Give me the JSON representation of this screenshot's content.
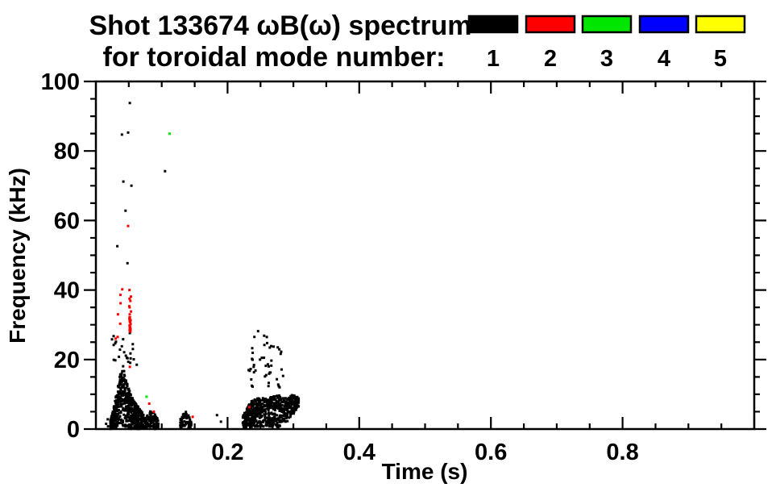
{
  "title": {
    "line1": "Shot 133674 ωB(ω) spectrum",
    "line2": "for toroidal mode number:"
  },
  "legend": {
    "items": [
      {
        "label": "1",
        "color": "#000000"
      },
      {
        "label": "2",
        "color": "#ff0000"
      },
      {
        "label": "3",
        "color": "#00e600"
      },
      {
        "label": "4",
        "color": "#0000ff"
      },
      {
        "label": "5",
        "color": "#ffff00"
      }
    ]
  },
  "chart_data": {
    "type": "scatter",
    "title": "Shot 133674 ωB(ω) spectrum for toroidal mode number: 1 2 3 4 5",
    "xlabel": "Time (s)",
    "ylabel": "Frequency (kHz)",
    "xlim": [
      0,
      1.0
    ],
    "ylim": [
      0,
      100
    ],
    "x_major_ticks": [
      0.2,
      0.4,
      0.6,
      0.8,
      1.0
    ],
    "x_tick_labels": [
      "0.2",
      "0.4",
      "0.6",
      "0.8",
      ""
    ],
    "x_minor_step": 0.05,
    "y_major_ticks": [
      0,
      20,
      40,
      60,
      80,
      100
    ],
    "y_tick_labels": [
      "0",
      "20",
      "40",
      "60",
      "80",
      "100"
    ],
    "y_minor_step": 5,
    "grid": false,
    "legend_position": "top-right",
    "series": [
      {
        "mode": 1,
        "color": "#000000",
        "points": [
          [
            0.0155,
            1.5
          ],
          [
            0.018,
            2.8
          ],
          [
            0.0185,
            0.8
          ],
          [
            0.0245,
            25.8
          ],
          [
            0.027,
            24.2
          ],
          [
            0.0295,
            19.8
          ],
          [
            0.0325,
            52.6
          ],
          [
            0.0395,
            84.7
          ],
          [
            0.049,
            85.3
          ],
          [
            0.0515,
            93.8
          ],
          [
            0.0417,
            71.2
          ],
          [
            0.054,
            70.0
          ],
          [
            0.045,
            62.8
          ],
          [
            0.048,
            47.7
          ],
          [
            0.043,
            22.1
          ],
          [
            0.047,
            20.5
          ],
          [
            0.0515,
            27.6
          ],
          [
            0.056,
            24.4
          ],
          [
            0.062,
            18.5
          ],
          [
            0.105,
            74.2
          ],
          [
            0.184,
            4.0
          ],
          [
            0.19,
            2.1
          ]
        ],
        "dense_regions": [
          {
            "name": "burst-1-core",
            "seed": 7,
            "n": 600,
            "envelope": [
              [
                0.022,
                0,
                2.5
              ],
              [
                0.028,
                0,
                7
              ],
              [
                0.033,
                0.5,
                12
              ],
              [
                0.037,
                1,
                16
              ],
              [
                0.041,
                1,
                18.5
              ],
              [
                0.045,
                0.5,
                15
              ],
              [
                0.049,
                0,
                12.5
              ],
              [
                0.053,
                0,
                10
              ],
              [
                0.058,
                0,
                8
              ],
              [
                0.063,
                0,
                7
              ],
              [
                0.068,
                0,
                5.5
              ],
              [
                0.073,
                0,
                4
              ]
            ]
          },
          {
            "name": "burst-1-tail",
            "seed": 11,
            "n": 110,
            "envelope": [
              [
                0.075,
                0,
                3
              ],
              [
                0.079,
                0.5,
                5
              ],
              [
                0.084,
                0.5,
                5.5
              ],
              [
                0.089,
                0,
                4.5
              ],
              [
                0.095,
                0,
                2.5
              ]
            ]
          },
          {
            "name": "burst-2",
            "seed": 13,
            "n": 80,
            "envelope": [
              [
                0.128,
                0.5,
                3
              ],
              [
                0.132,
                0.5,
                4.5
              ],
              [
                0.137,
                0.5,
                5
              ],
              [
                0.141,
                0,
                4
              ],
              [
                0.145,
                0,
                2
              ]
            ]
          },
          {
            "name": "burst-3-core",
            "seed": 17,
            "n": 620,
            "envelope": [
              [
                0.223,
                0,
                4
              ],
              [
                0.23,
                0.5,
                6.5
              ],
              [
                0.238,
                0.5,
                8.5
              ],
              [
                0.246,
                0.5,
                9
              ],
              [
                0.254,
                0.5,
                9.5
              ],
              [
                0.262,
                0.5,
                8.5
              ],
              [
                0.27,
                0.5,
                10
              ],
              [
                0.278,
                0.5,
                10
              ],
              [
                0.286,
                1.5,
                9.5
              ],
              [
                0.293,
                2.5,
                9
              ],
              [
                0.299,
                4,
                10
              ],
              [
                0.304,
                5.5,
                9.5
              ],
              [
                0.308,
                6.5,
                9
              ]
            ]
          },
          {
            "name": "burst-3-halo",
            "seed": 19,
            "n": 48,
            "envelope": [
              [
                0.232,
                12,
                28
              ],
              [
                0.25,
                12,
                29
              ],
              [
                0.27,
                12,
                26
              ],
              [
                0.285,
                12,
                22
              ]
            ]
          },
          {
            "name": "burst-1-halo",
            "seed": 23,
            "n": 16,
            "envelope": [
              [
                0.024,
                19.5,
                27
              ],
              [
                0.045,
                19,
                26
              ],
              [
                0.058,
                19,
                24
              ]
            ]
          }
        ]
      },
      {
        "mode": 2,
        "color": "#ff0000",
        "points": [
          [
            0.03,
            26.0
          ],
          [
            0.033,
            26.5
          ],
          [
            0.0335,
            33.0
          ],
          [
            0.037,
            30.3
          ],
          [
            0.0372,
            38.6
          ],
          [
            0.0375,
            36.2
          ],
          [
            0.04,
            40.2
          ],
          [
            0.049,
            58.4
          ],
          [
            0.051,
            40.0
          ],
          [
            0.0512,
            37.5
          ],
          [
            0.0513,
            35.0
          ],
          [
            0.0514,
            33.0
          ],
          [
            0.0515,
            31.2
          ],
          [
            0.0516,
            29.6
          ],
          [
            0.0518,
            28.4
          ],
          [
            0.052,
            30.8
          ],
          [
            0.0528,
            30.2
          ],
          [
            0.0515,
            17.9
          ],
          [
            0.081,
            7.3
          ],
          [
            0.088,
            5.0
          ],
          [
            0.147,
            3.5
          ],
          [
            0.233,
            6.3
          ]
        ],
        "dense_regions": [
          {
            "name": "red-streak",
            "seed": 29,
            "n": 16,
            "envelope": [
              [
                0.0505,
                28,
                40
              ],
              [
                0.0535,
                28,
                40
              ]
            ]
          }
        ]
      },
      {
        "mode": 3,
        "color": "#00e600",
        "points": [
          [
            0.077,
            9.3
          ],
          [
            0.112,
            85.0
          ]
        ],
        "dense_regions": []
      },
      {
        "mode": 4,
        "color": "#0000ff",
        "points": [],
        "dense_regions": []
      },
      {
        "mode": 5,
        "color": "#ffff00",
        "points": [],
        "dense_regions": []
      }
    ]
  }
}
